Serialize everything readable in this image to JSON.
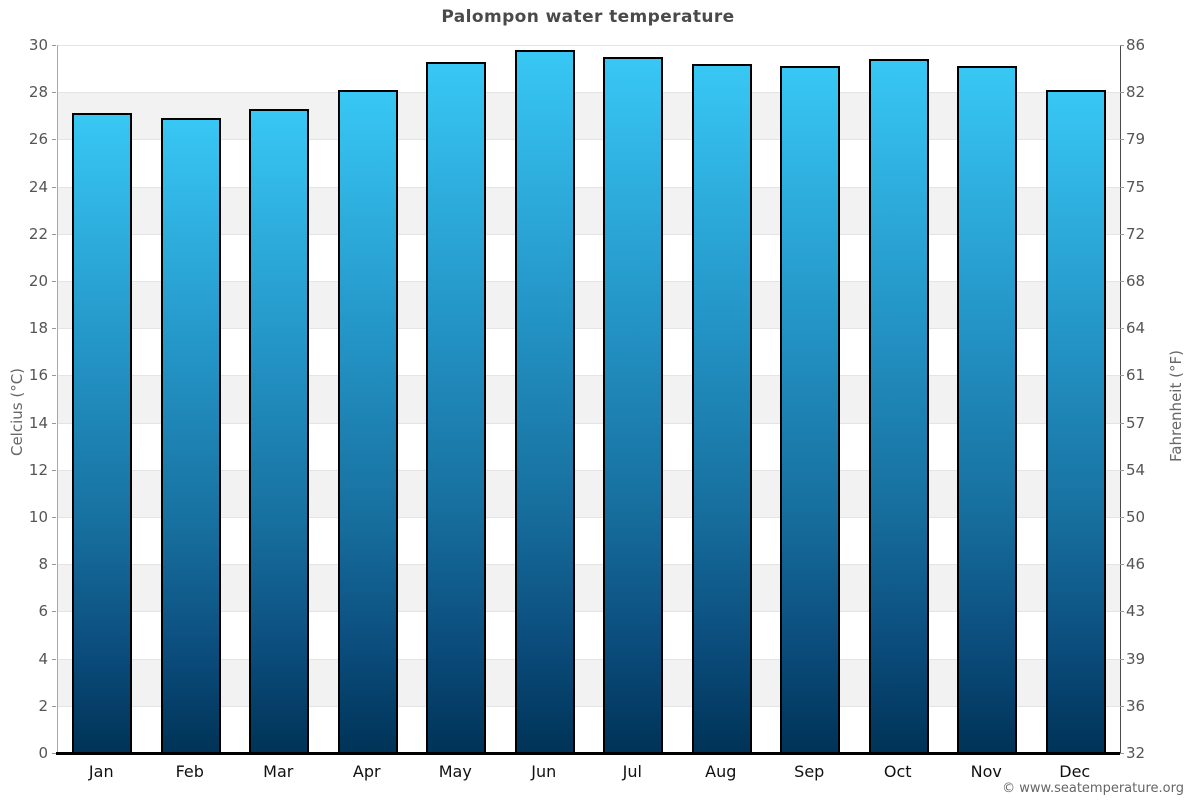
{
  "title": "Palompon water temperature",
  "footer": {
    "credit": "© www.seatemperature.org"
  },
  "axes": {
    "left_label": "Celcius (°C)",
    "right_label": "Fahrenheit (°F)"
  },
  "chart_data": {
    "type": "bar",
    "title": "Palompon water temperature",
    "categories": [
      "Jan",
      "Feb",
      "Mar",
      "Apr",
      "May",
      "Jun",
      "Jul",
      "Aug",
      "Sep",
      "Oct",
      "Nov",
      "Dec"
    ],
    "values": [
      27.1,
      26.9,
      27.3,
      28.1,
      29.3,
      29.8,
      29.5,
      29.2,
      29.1,
      29.4,
      29.1,
      28.1
    ],
    "unit": "°C",
    "xlabel": "",
    "ylabel_left": "Celcius (°C)",
    "ylabel_right": "Fahrenheit (°F)",
    "ylim_celsius": [
      0,
      30
    ],
    "yticks_celsius": [
      0,
      2,
      4,
      6,
      8,
      10,
      12,
      14,
      16,
      18,
      20,
      22,
      24,
      26,
      28,
      30
    ],
    "yticks_fahrenheit": [
      "32",
      "36",
      "39",
      "43",
      "46",
      "50",
      "54",
      "57",
      "61",
      "64",
      "68",
      "72",
      "75",
      "79",
      "82",
      "86"
    ],
    "grid": "horizontal alternating bands, on",
    "legend_position": "none",
    "colors": {
      "bar_gradient_top": "#38c7f4",
      "bar_gradient_bottom": "#003357",
      "bar_border": "#000000",
      "band_gray": "#f2f2f2",
      "band_white": "#ffffff",
      "gridline": "#e4e4e4",
      "title_text": "#4a4a4a",
      "tick_text": "#555555",
      "month_text": "#111111"
    }
  }
}
